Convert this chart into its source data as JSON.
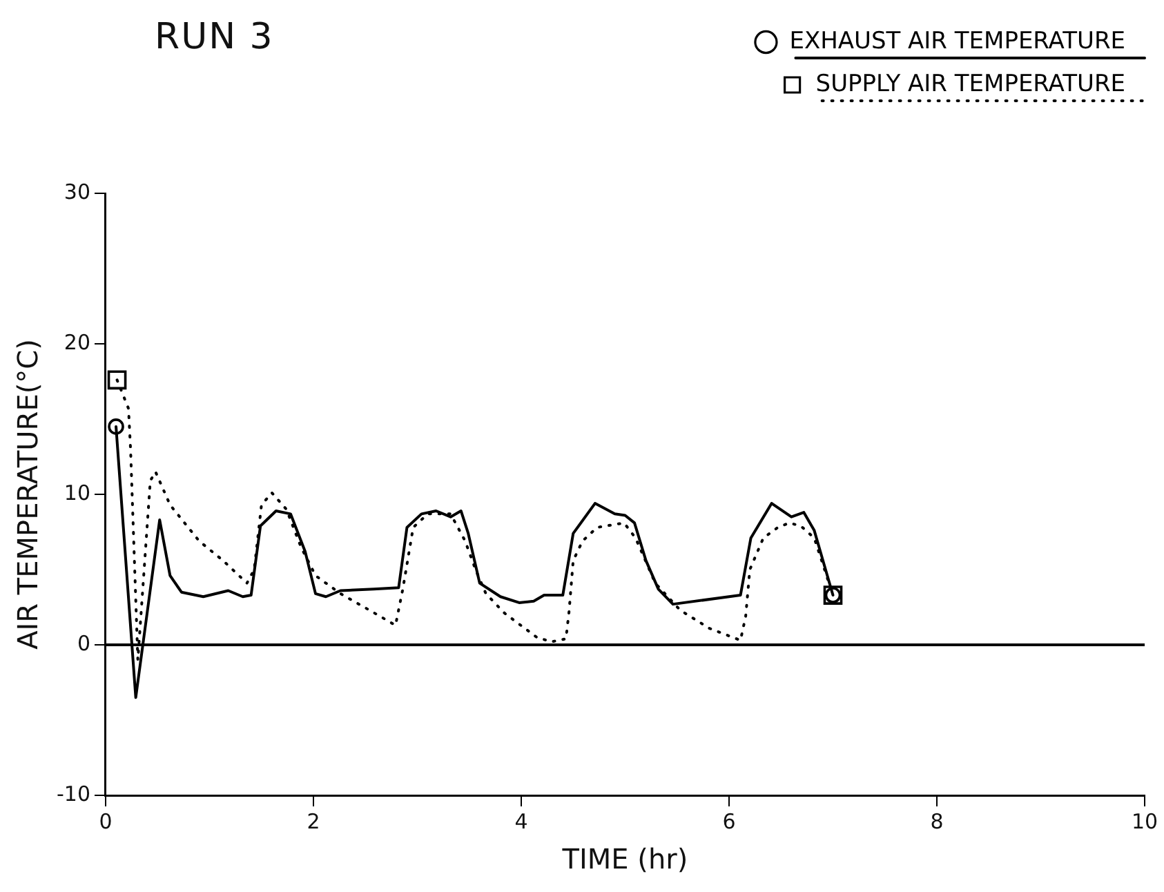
{
  "chart_data": {
    "type": "line",
    "title": "RUN 3",
    "xlabel": "TIME (hr)",
    "ylabel": "AIR TEMPERATURE(°C)",
    "xlim": [
      0,
      10
    ],
    "xticks": [
      0,
      2,
      4,
      6,
      8,
      10
    ],
    "ylim": [
      -10,
      30
    ],
    "yticks": [
      -10,
      0,
      10,
      20,
      30
    ],
    "grid": false,
    "legend": "top right",
    "ref_lines": [
      {
        "axis": "y",
        "value": 0,
        "color": "#000000",
        "line_style": "solid"
      }
    ],
    "series": [
      {
        "name": "EXHAUST AIR TEMPERATURE",
        "color": "#000000",
        "line_style": "solid",
        "x": [
          0.1,
          0.29,
          0.52,
          0.62,
          0.73,
          0.94,
          1.18,
          1.32,
          1.4,
          1.49,
          1.64,
          1.78,
          1.92,
          2.02,
          2.12,
          2.26,
          2.58,
          2.82,
          2.9,
          3.04,
          3.18,
          3.32,
          3.42,
          3.49,
          3.6,
          3.8,
          3.98,
          4.12,
          4.22,
          4.4,
          4.5,
          4.71,
          4.9,
          5.0,
          5.09,
          5.2,
          5.32,
          5.46,
          6.11,
          6.21,
          6.41,
          6.6,
          6.72,
          6.82,
          7.0
        ],
        "values": [
          14.5,
          -3.5,
          8.3,
          4.6,
          3.5,
          3.2,
          3.6,
          3.2,
          3.3,
          7.9,
          8.9,
          8.7,
          6.2,
          3.4,
          3.2,
          3.6,
          3.7,
          3.8,
          7.8,
          8.7,
          8.9,
          8.5,
          8.9,
          7.4,
          4.1,
          3.2,
          2.8,
          2.9,
          3.3,
          3.3,
          7.4,
          9.4,
          8.7,
          8.6,
          8.1,
          5.6,
          3.7,
          2.7,
          3.3,
          7.1,
          9.4,
          8.5,
          8.8,
          7.6,
          3.3
        ]
      },
      {
        "name": "SUPPLY AIR TEMPERATURE",
        "color": "#000000",
        "line_style": "dotted",
        "x": [
          0.11,
          0.22,
          0.24,
          0.31,
          0.43,
          0.48,
          0.62,
          0.9,
          1.13,
          1.36,
          1.43,
          1.5,
          1.6,
          1.74,
          1.88,
          2.02,
          2.26,
          2.54,
          2.79,
          2.86,
          2.96,
          3.1,
          3.32,
          3.46,
          3.56,
          3.66,
          3.84,
          4.15,
          4.29,
          4.43,
          4.46,
          4.5,
          4.59,
          4.73,
          4.99,
          5.1,
          5.29,
          5.53,
          5.81,
          6.11,
          6.16,
          6.2,
          6.33,
          6.47,
          6.58,
          6.69,
          6.82,
          7.0
        ],
        "values": [
          17.6,
          15.7,
          13.0,
          -1.0,
          10.9,
          11.5,
          9.3,
          6.9,
          5.6,
          4.1,
          5.0,
          9.3,
          10.1,
          9.0,
          6.5,
          4.6,
          3.4,
          2.3,
          1.3,
          3.7,
          7.8,
          8.7,
          8.7,
          6.9,
          5.0,
          3.4,
          2.1,
          0.5,
          0.2,
          0.4,
          2.2,
          5.6,
          6.9,
          7.8,
          8.1,
          7.1,
          4.1,
          2.3,
          1.1,
          0.3,
          1.9,
          5.0,
          7.1,
          7.8,
          8.1,
          7.9,
          7.1,
          3.3
        ]
      },
      {
        "type": "scatter",
        "color": "#000000",
        "marker": "circle",
        "x": [
          0.1,
          7.0
        ],
        "values": [
          14.5,
          3.3
        ]
      },
      {
        "type": "scatter",
        "color": "#000000",
        "marker": "square",
        "x": [
          0.11,
          7.0
        ],
        "values": [
          17.6,
          3.3
        ]
      }
    ]
  }
}
